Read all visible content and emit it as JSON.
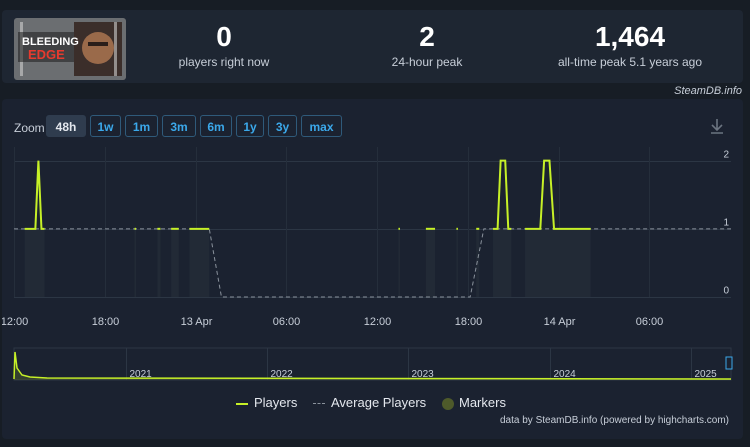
{
  "stats": {
    "players_now": {
      "value": "0",
      "label": "players right now"
    },
    "peak_24h": {
      "value": "2",
      "label": "24-hour peak"
    },
    "peak_all": {
      "value": "1,464",
      "label": "all-time peak 5.1 years ago"
    }
  },
  "logo_text": "BLEEDING EDGE",
  "steamdb_label": "SteamDB.info",
  "zoom": {
    "label": "Zoom",
    "buttons": [
      "48h",
      "1w",
      "1m",
      "3m",
      "6m",
      "1y",
      "3y",
      "max"
    ],
    "active": "48h"
  },
  "legend": {
    "players": "Players",
    "average": "Average Players",
    "markers": "Markers"
  },
  "credits": "data by SteamDB.info (powered by highcharts.com)",
  "colors": {
    "players": "#c6f027",
    "average": "#8a929c",
    "markers": "#4e5a2a",
    "accent": "#3ba8ea"
  },
  "chart_data": [
    {
      "type": "line",
      "title": "",
      "x_type": "datetime",
      "x_ticks": [
        "12:00",
        "18:00",
        "13 Apr",
        "06:00",
        "12:00",
        "18:00",
        "14 Apr",
        "06:00"
      ],
      "y_ticks": [
        0,
        1,
        2
      ],
      "ylim": [
        0,
        2.2
      ],
      "series": [
        {
          "name": "Players",
          "segments": [
            [
              [
                0.7,
                1
              ],
              [
                1.4,
                1
              ],
              [
                1.6,
                2
              ],
              [
                1.8,
                1
              ],
              [
                2.0,
                1
              ]
            ],
            [
              [
                7.9,
                1
              ],
              [
                8.0,
                1
              ]
            ],
            [
              [
                9.4,
                1
              ],
              [
                9.6,
                1
              ]
            ],
            [
              [
                10.3,
                1
              ],
              [
                10.8,
                1
              ]
            ],
            [
              [
                11.5,
                1
              ],
              [
                12.8,
                1
              ]
            ],
            [
              [
                25.2,
                1
              ],
              [
                25.3,
                1
              ]
            ],
            [
              [
                27.0,
                1
              ],
              [
                27.6,
                1
              ]
            ],
            [
              [
                29.0,
                1
              ],
              [
                29.1,
                1
              ]
            ],
            [
              [
                30.3,
                1
              ],
              [
                30.5,
                1
              ]
            ],
            [
              [
                31.4,
                1
              ],
              [
                31.7,
                1
              ],
              [
                31.9,
                2
              ],
              [
                32.2,
                2
              ],
              [
                32.4,
                1
              ],
              [
                32.6,
                1
              ]
            ],
            [
              [
                33.5,
                1
              ],
              [
                34.5,
                1
              ],
              [
                34.75,
                2
              ],
              [
                35.1,
                2
              ],
              [
                35.4,
                1
              ],
              [
                37.8,
                1
              ]
            ]
          ]
        },
        {
          "name": "Average Players",
          "values": [
            [
              0.0,
              1
            ],
            [
              12.8,
              1
            ],
            [
              13.6,
              0
            ],
            [
              29.9,
              0
            ],
            [
              30.8,
              1
            ],
            [
              47.0,
              1
            ]
          ]
        }
      ]
    },
    {
      "type": "area",
      "role": "navigator",
      "x_labels": [
        "2021",
        "2022",
        "2023",
        "2024",
        "2025"
      ]
    }
  ]
}
